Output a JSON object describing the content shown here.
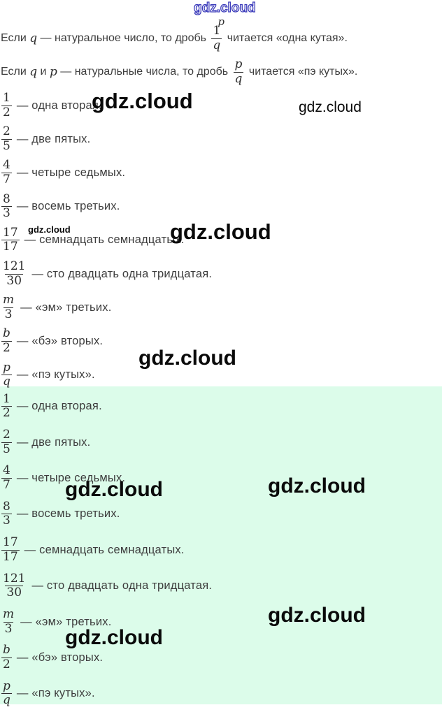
{
  "watermark": {
    "text": "gdz.cloud"
  },
  "colors": {
    "green_background": "#dcfcea",
    "watermark_blue_outline": "#3d3dbb",
    "body_text": "#3d3d3d"
  },
  "intro": {
    "line1": {
      "t1": "Если ",
      "v1": "q",
      "t2": " — натуральное число, то дробь ",
      "num": "1",
      "den": "q",
      "stray": "p",
      "t3": " читается «одна кутая»."
    },
    "line2": {
      "t1": "Если ",
      "v1": "q",
      "t2": " и ",
      "v2": "p",
      "t3": " — натуральные числа, то дробь ",
      "num": "p",
      "den": "q",
      "t4": " читается «пэ кутых»."
    }
  },
  "items": [
    {
      "num": "1",
      "den": "2",
      "label": "— одна вторая."
    },
    {
      "num": "2",
      "den": "5",
      "label": "— две пятых."
    },
    {
      "num": "4",
      "den": "7",
      "label": "— четыре седьмых."
    },
    {
      "num": "8",
      "den": "3",
      "label": "— восемь третьих."
    },
    {
      "num": "17",
      "den": "17",
      "label": "— семнадцать семнадцатых."
    },
    {
      "num": "121",
      "den": "30",
      "label": "— сто двадцать одна тридцатая."
    },
    {
      "num": "m",
      "den": "3",
      "label": "— «эм» третьих."
    },
    {
      "num": "b",
      "den": "2",
      "label": "— «бэ» вторых."
    },
    {
      "num": "p",
      "den": "q",
      "label": "— «пэ кутых»."
    }
  ]
}
